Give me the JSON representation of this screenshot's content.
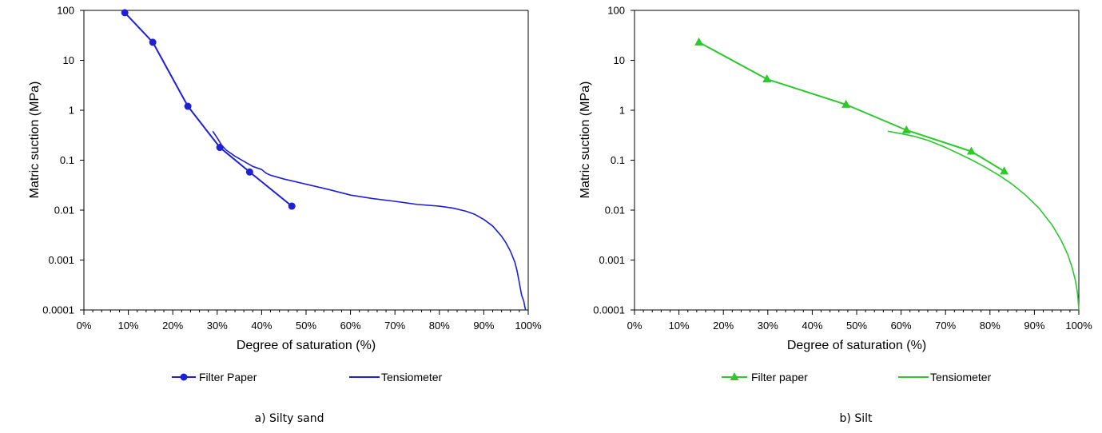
{
  "chart_data": [
    {
      "type": "line",
      "caption": "a) Silty sand",
      "xlabel": "Degree of saturation (%)",
      "ylabel": "Matric suction (MPa)",
      "xlim": [
        0,
        100
      ],
      "ylim": [
        0.0001,
        100
      ],
      "y_scale": "log",
      "x_tick_labels": [
        "0%",
        "10%",
        "20%",
        "30%",
        "40%",
        "50%",
        "60%",
        "70%",
        "80%",
        "90%",
        "100%"
      ],
      "y_tick_labels": [
        "0.0001",
        "0.001",
        "0.01",
        "0.1",
        "1",
        "10",
        "100"
      ],
      "grid": false,
      "legend_position": "bottom",
      "series": [
        {
          "name": "Filter Paper",
          "color": "#1f1fd6",
          "marker": "circle",
          "x": [
            9.2,
            15.5,
            23.4,
            30.6,
            37.3,
            46.8
          ],
          "y": [
            90,
            23,
            1.2,
            0.18,
            0.058,
            0.012
          ]
        },
        {
          "name": "Tensiometer",
          "color": "#1f1fd6",
          "marker": "none",
          "x": [
            29,
            30,
            31,
            32,
            34,
            36,
            38,
            40,
            41,
            42,
            45,
            50,
            55,
            60,
            65,
            70,
            75,
            80,
            83,
            86,
            88,
            90,
            92,
            94,
            95,
            96,
            97,
            97.5,
            98,
            98.5,
            99,
            99.2,
            99.4
          ],
          "y": [
            0.38,
            0.28,
            0.2,
            0.16,
            0.12,
            0.095,
            0.075,
            0.065,
            0.055,
            0.05,
            0.042,
            0.033,
            0.026,
            0.02,
            0.017,
            0.015,
            0.013,
            0.012,
            0.011,
            0.0095,
            0.0082,
            0.0065,
            0.0048,
            0.003,
            0.0022,
            0.0015,
            0.0009,
            0.0006,
            0.00035,
            0.0002,
            0.00015,
            0.00012,
            0.0001
          ]
        }
      ]
    },
    {
      "type": "line",
      "caption": "b) Silt",
      "xlabel": "Degree of saturation (%)",
      "ylabel": "Matric suction (MPa)",
      "xlim": [
        0,
        100
      ],
      "ylim": [
        0.0001,
        100
      ],
      "y_scale": "log",
      "x_tick_labels": [
        "0%",
        "10%",
        "20%",
        "30%",
        "40%",
        "50%",
        "60%",
        "70%",
        "80%",
        "90%",
        "100%"
      ],
      "y_tick_labels": [
        "0.0001",
        "0.001",
        "0.01",
        "0.1",
        "1",
        "10",
        "100"
      ],
      "grid": false,
      "legend_position": "bottom",
      "series": [
        {
          "name": "Filter paper",
          "color": "#2cc82c",
          "marker": "triangle",
          "x": [
            14.5,
            29.8,
            47.6,
            61.2,
            75.8,
            83.2
          ],
          "y": [
            23,
            4.2,
            1.3,
            0.4,
            0.15,
            0.06
          ]
        },
        {
          "name": "Tensiometer",
          "color": "#2cc82c",
          "marker": "none",
          "x": [
            57,
            60,
            63,
            66,
            70,
            73,
            76,
            79,
            82,
            85,
            88,
            91,
            94,
            96,
            97.5,
            98.5,
            99.2,
            99.6,
            99.8,
            99.9,
            100
          ],
          "y": [
            0.38,
            0.34,
            0.3,
            0.25,
            0.18,
            0.135,
            0.1,
            0.072,
            0.05,
            0.033,
            0.02,
            0.011,
            0.005,
            0.0025,
            0.0013,
            0.0007,
            0.0004,
            0.00025,
            0.00018,
            0.00013,
            0.0001
          ]
        }
      ]
    }
  ]
}
